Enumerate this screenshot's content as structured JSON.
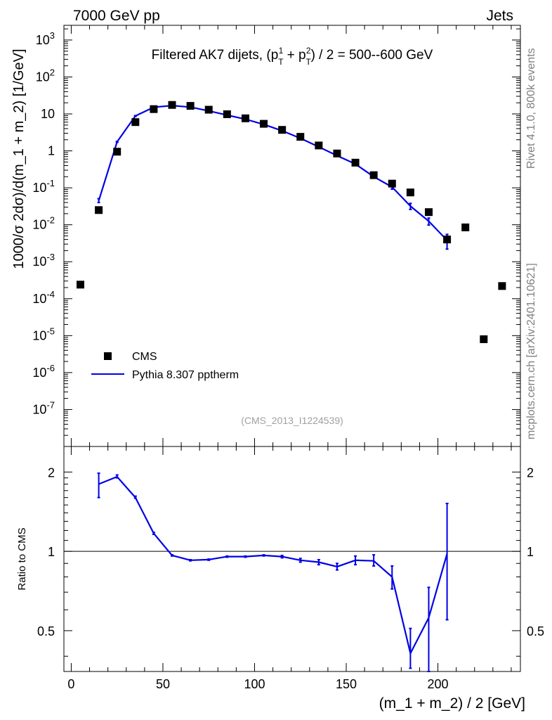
{
  "header": {
    "left_label": "7000 GeV pp",
    "right_label": "Jets"
  },
  "side_labels": {
    "rivet": "Rivet 4.1.0,  800k events",
    "mcplots": "mcplots.cern.ch [arXiv:2401.10621]"
  },
  "watermark": "(CMS_2013_I1224539)",
  "title": {
    "prefix": "Filtered AK7 dijets, (p",
    "sup1": "1",
    "sub1": "T",
    "plus": " + p",
    "sup2": "2",
    "sub2": "T",
    "suffix": ") / 2 = 500--600 GeV"
  },
  "legend": {
    "data_label": "CMS",
    "mc_label": "Pythia 8.307 pptherm"
  },
  "colors": {
    "data": "#000000",
    "mc": "#0000e6",
    "axis": "#000000"
  },
  "chart_data": [
    {
      "type": "scatter",
      "panel": "main",
      "yscale": "log",
      "ylabel": "1000/σ  2dσ)/d(m_1 + m_2) [1/GeV]",
      "xlim": [
        -4,
        245
      ],
      "ylim": [
        1e-08,
        2500
      ],
      "y_ticks": [
        {
          "value": 1e-07,
          "base": "10",
          "exp": "-7"
        },
        {
          "value": 1e-06,
          "base": "10",
          "exp": "-6"
        },
        {
          "value": 1e-05,
          "base": "10",
          "exp": "-5"
        },
        {
          "value": 0.0001,
          "base": "10",
          "exp": "-4"
        },
        {
          "value": 0.001,
          "base": "10",
          "exp": "-3"
        },
        {
          "value": 0.01,
          "base": "10",
          "exp": "-2"
        },
        {
          "value": 0.1,
          "base": "10",
          "exp": "-1"
        },
        {
          "value": 1,
          "base": "1",
          "exp": ""
        },
        {
          "value": 10,
          "base": "10",
          "exp": ""
        },
        {
          "value": 100,
          "base": "10",
          "exp": "2"
        },
        {
          "value": 1000,
          "base": "10",
          "exp": "3"
        }
      ],
      "series": [
        {
          "name": "CMS",
          "style": "square-markers",
          "x": [
            5,
            15,
            25,
            35,
            45,
            55,
            65,
            75,
            85,
            95,
            105,
            115,
            125,
            135,
            145,
            155,
            165,
            175,
            185,
            195,
            205,
            215,
            225,
            235
          ],
          "y": [
            0.00024,
            0.025,
            0.95,
            6.0,
            13.5,
            17.5,
            16.5,
            13.0,
            9.8,
            7.6,
            5.4,
            3.7,
            2.4,
            1.4,
            0.85,
            0.48,
            0.22,
            0.13,
            0.075,
            0.022,
            0.004,
            0.0085,
            8e-06,
            0.00022
          ]
        },
        {
          "name": "Pythia 8.307 pptherm",
          "style": "line",
          "x": [
            15,
            25,
            35,
            45,
            55,
            65,
            75,
            85,
            95,
            105,
            115,
            125,
            135,
            145,
            155,
            165,
            175,
            185,
            195,
            205
          ],
          "y": [
            0.045,
            1.75,
            8.8,
            15.2,
            16.8,
            15.3,
            12.1,
            9.3,
            7.2,
            5.2,
            3.52,
            2.2,
            1.28,
            0.74,
            0.44,
            0.2,
            0.105,
            0.032,
            0.0125,
            0.0038
          ],
          "err_low": [
            0.04,
            1.7,
            8.6,
            15.0,
            16.6,
            15.1,
            12.0,
            9.2,
            7.1,
            5.15,
            3.48,
            2.17,
            1.25,
            0.71,
            0.41,
            0.185,
            0.092,
            0.026,
            0.0098,
            0.0022
          ],
          "err_high": [
            0.051,
            1.8,
            9.0,
            15.4,
            17.0,
            15.5,
            12.2,
            9.4,
            7.3,
            5.25,
            3.56,
            2.23,
            1.31,
            0.77,
            0.47,
            0.215,
            0.118,
            0.038,
            0.0152,
            0.0055
          ]
        }
      ]
    },
    {
      "type": "line",
      "panel": "ratio",
      "yscale": "log",
      "ylabel": "Ratio to CMS",
      "xlabel": "(m_1 + m_2) / 2 [GeV]",
      "xlim": [
        -4,
        245
      ],
      "ylim": [
        0.35,
        2.5
      ],
      "reference_line": 1,
      "y_ticks": [
        {
          "value": 0.5,
          "label": "0.5"
        },
        {
          "value": 1,
          "label": "1"
        },
        {
          "value": 2,
          "label": "2"
        }
      ],
      "x_ticks": [
        {
          "value": 0,
          "label": "0"
        },
        {
          "value": 50,
          "label": "50"
        },
        {
          "value": 100,
          "label": "100"
        },
        {
          "value": 150,
          "label": "150"
        },
        {
          "value": 200,
          "label": "200"
        }
      ],
      "series": [
        {
          "name": "Pythia 8.307 pptherm / CMS",
          "x": [
            15,
            25,
            35,
            45,
            55,
            65,
            75,
            85,
            95,
            105,
            115,
            125,
            135,
            145,
            155,
            165,
            175,
            185,
            195,
            205
          ],
          "y": [
            1.8,
            1.92,
            1.6,
            1.17,
            0.965,
            0.925,
            0.93,
            0.955,
            0.955,
            0.965,
            0.955,
            0.925,
            0.91,
            0.875,
            0.925,
            0.92,
            0.8,
            0.41,
            0.56,
            0.98
          ],
          "err_low": [
            1.6,
            1.9,
            1.59,
            1.16,
            0.96,
            0.92,
            0.925,
            0.95,
            0.95,
            0.96,
            0.945,
            0.91,
            0.89,
            0.85,
            0.89,
            0.88,
            0.72,
            0.36,
            0.35,
            0.55
          ],
          "err_high": [
            1.98,
            1.95,
            1.62,
            1.18,
            0.97,
            0.93,
            0.935,
            0.96,
            0.96,
            0.97,
            0.965,
            0.94,
            0.93,
            0.9,
            0.96,
            0.97,
            0.88,
            0.51,
            0.73,
            1.52
          ]
        }
      ]
    }
  ]
}
